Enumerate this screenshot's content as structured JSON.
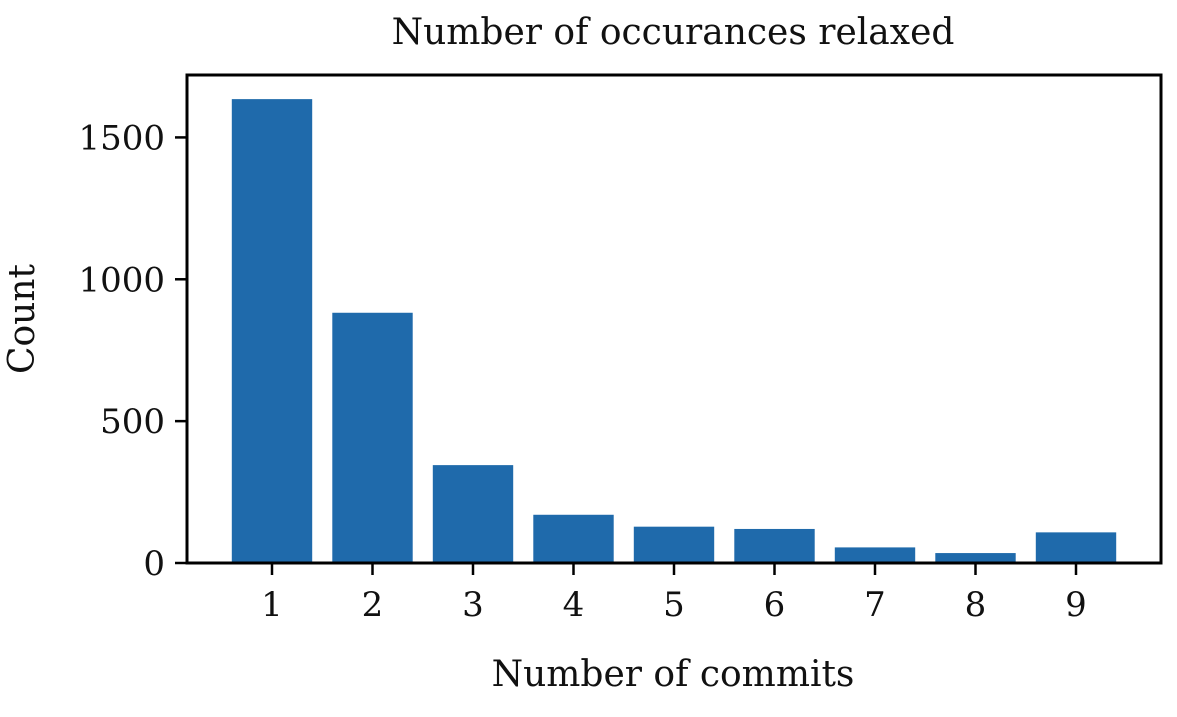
{
  "chart_data": {
    "type": "bar",
    "title": "Number of occurances relaxed",
    "xlabel": "Number of commits",
    "ylabel": "Count",
    "categories": [
      "1",
      "2",
      "3",
      "4",
      "5",
      "6",
      "7",
      "8",
      "9"
    ],
    "values": [
      1635,
      882,
      345,
      170,
      128,
      120,
      55,
      35,
      108
    ],
    "ylim": [
      0,
      1720
    ],
    "yticks": [
      "0",
      "500",
      "1000",
      "1500"
    ],
    "grid": false,
    "legend": "none",
    "bar_color": "#1f6aab"
  }
}
